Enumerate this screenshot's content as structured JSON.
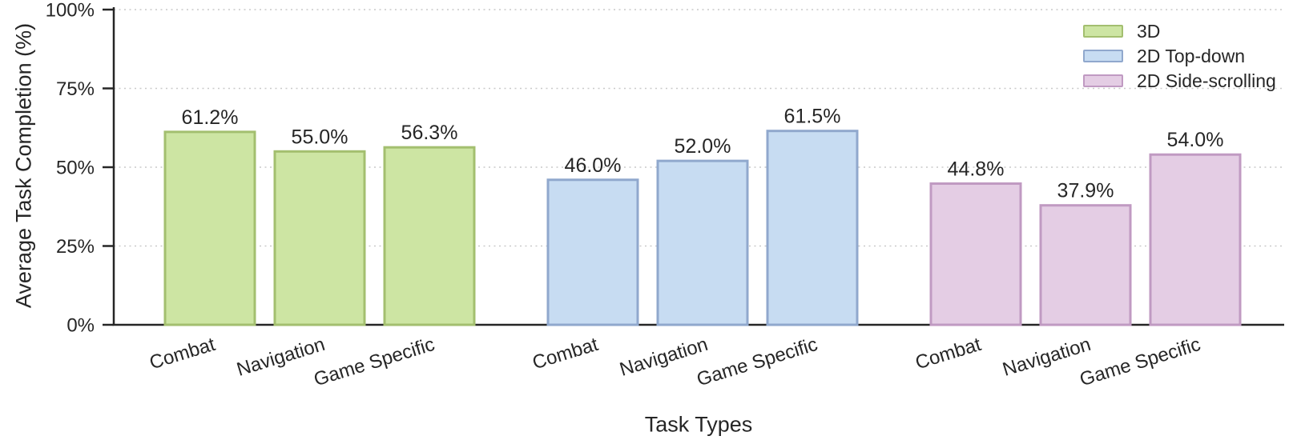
{
  "chart_data": {
    "type": "bar",
    "title": "",
    "xlabel": "Task Types",
    "ylabel": "Average Task Completion (%)",
    "ylim": [
      0,
      100
    ],
    "ytick_values": [
      0,
      25,
      50,
      75,
      100
    ],
    "ytick_labels": [
      "0%",
      "25%",
      "50%",
      "75%",
      "100%"
    ],
    "categories": [
      "Combat",
      "Navigation",
      "Game Specific"
    ],
    "series": [
      {
        "name": "3D",
        "values": [
          61.2,
          55.0,
          56.3
        ],
        "value_labels": [
          "61.2%",
          "55.0%",
          "56.3%"
        ],
        "fill": "#cde5a3",
        "edge": "#a3bf6f"
      },
      {
        "name": "2D Top-down",
        "values": [
          46.0,
          52.0,
          61.5
        ],
        "value_labels": [
          "46.0%",
          "52.0%",
          "61.5%"
        ],
        "fill": "#c7dcf2",
        "edge": "#90a8cd"
      },
      {
        "name": "2D Side-scrolling",
        "values": [
          44.8,
          37.9,
          54.0
        ],
        "value_labels": [
          "44.8%",
          "37.9%",
          "54.0%"
        ],
        "fill": "#e4cde4",
        "edge": "#c09ac2"
      }
    ],
    "legend_position": "upper right",
    "grid": "horizontal-dotted",
    "grid_color": "#c9c9c9",
    "axis_color": "#262626",
    "value_label_color": "#262626"
  }
}
